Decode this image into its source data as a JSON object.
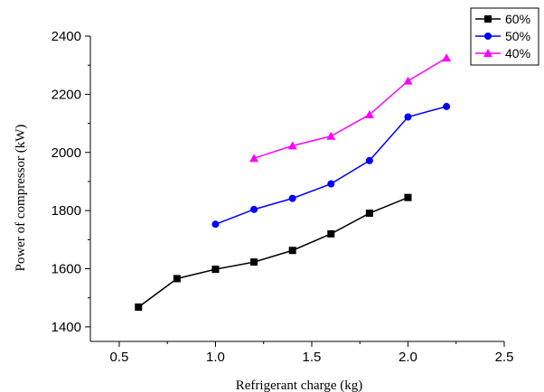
{
  "chart_data": {
    "type": "line",
    "title": "",
    "xlabel": "Refrigerant charge (kg)",
    "ylabel": "Power of compressor (kW)",
    "xlim": [
      0.35,
      2.5
    ],
    "ylim": [
      1350,
      2400
    ],
    "x_ticks": [
      0.5,
      1.0,
      1.5,
      2.0,
      2.5
    ],
    "x_tick_labels": [
      "0.5",
      "1.0",
      "1.5",
      "2.0",
      "2.5"
    ],
    "y_ticks": [
      1400,
      1600,
      1800,
      2000,
      2200,
      2400
    ],
    "y_tick_labels": [
      "1400",
      "1600",
      "1800",
      "2000",
      "2200",
      "2400"
    ],
    "grid": false,
    "legend_position": "top-right",
    "series": [
      {
        "name": "60%",
        "color": "#000000",
        "marker": "square",
        "x": [
          0.6,
          0.8,
          1.0,
          1.2,
          1.4,
          1.6,
          1.8,
          2.0
        ],
        "y": [
          1468,
          1566,
          1598,
          1623,
          1663,
          1720,
          1791,
          1845
        ]
      },
      {
        "name": "50%",
        "color": "#0000ff",
        "marker": "circle",
        "x": [
          1.0,
          1.2,
          1.4,
          1.6,
          1.8,
          2.0,
          2.2
        ],
        "y": [
          1753,
          1804,
          1842,
          1892,
          1972,
          2122,
          2158
        ]
      },
      {
        "name": "40%",
        "color": "#ff00ff",
        "marker": "triangle",
        "x": [
          1.2,
          1.4,
          1.6,
          1.8,
          2.0,
          2.2
        ],
        "y": [
          1980,
          2023,
          2056,
          2130,
          2246,
          2325
        ]
      }
    ]
  }
}
